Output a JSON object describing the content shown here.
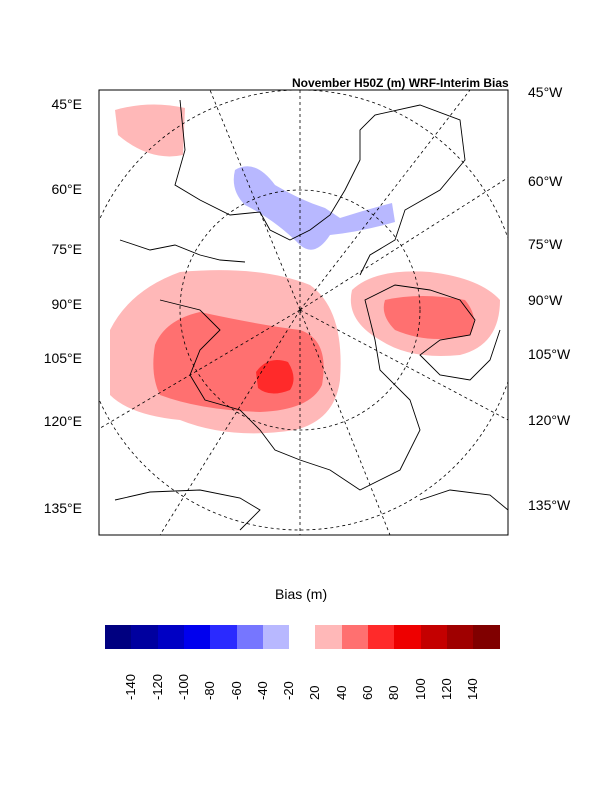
{
  "title": "November H50Z (m) WRF-Interim Bias",
  "left_labels": [
    "45°E",
    "60°E",
    "75°E",
    "90°E",
    "105°E",
    "120°E",
    "135°E"
  ],
  "right_labels": [
    "45°W",
    "60°W",
    "75°W",
    "90°W",
    "105°W",
    "120°W",
    "135°W"
  ],
  "colorbar": {
    "title": "Bias (m)",
    "labels": [
      "-140",
      "-120",
      "-100",
      "-80",
      "-60",
      "-40",
      "-20",
      "20",
      "40",
      "60",
      "80",
      "100",
      "120",
      "140"
    ],
    "colors": [
      "#000080",
      "#00009f",
      "#0000c4",
      "#0000ee",
      "#2a2aff",
      "#7676ff",
      "#b8b8ff",
      "#ffffff",
      "#ffb8b8",
      "#ff7070",
      "#ff2a2a",
      "#ee0000",
      "#c40000",
      "#9f0000",
      "#800000"
    ]
  }
}
